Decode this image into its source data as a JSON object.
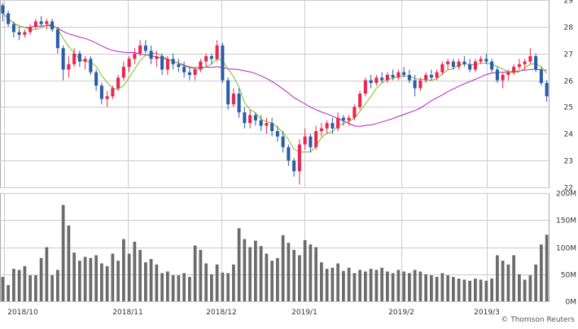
{
  "chart_data": {
    "type": "candlestick",
    "colors": {
      "up": "#e8264e",
      "down": "#2a5caa",
      "ma_short": "#7fbf1f",
      "ma_long": "#b822c8",
      "volume": "#6b6b6b",
      "grid": "#cccccc",
      "frame": "#aaaaaa"
    },
    "price_axis": {
      "ticks": [
        "22",
        "23",
        "24",
        "25",
        "26",
        "27",
        "28",
        "29"
      ],
      "ylim": [
        22,
        29
      ]
    },
    "volume_axis": {
      "ticks": [
        "0M",
        "50M",
        "100M",
        "150M",
        "200M"
      ],
      "ylim": [
        0,
        200
      ]
    },
    "x_labels": [
      "2018/10",
      "2018/11",
      "2018/12",
      "2019/1",
      "2019/2",
      "2019/3"
    ],
    "grid": true,
    "ohlc": [
      [
        28.8,
        28.9,
        28.2,
        28.5
      ],
      [
        28.5,
        28.6,
        28.0,
        28.1
      ],
      [
        28.1,
        28.2,
        27.6,
        27.8
      ],
      [
        27.8,
        28.0,
        27.5,
        27.7
      ],
      [
        27.7,
        27.9,
        27.6,
        27.8
      ],
      [
        27.8,
        28.1,
        27.7,
        28.0
      ],
      [
        28.0,
        28.3,
        27.9,
        28.2
      ],
      [
        28.2,
        28.4,
        28.0,
        28.1
      ],
      [
        28.1,
        28.3,
        27.9,
        28.2
      ],
      [
        28.2,
        28.3,
        27.8,
        27.9
      ],
      [
        27.9,
        28.0,
        27.0,
        27.2
      ],
      [
        27.2,
        27.3,
        26.0,
        26.4
      ],
      [
        26.4,
        26.9,
        26.1,
        26.6
      ],
      [
        26.6,
        27.2,
        26.5,
        27.0
      ],
      [
        27.0,
        27.1,
        26.5,
        26.7
      ],
      [
        26.7,
        26.9,
        26.4,
        26.8
      ],
      [
        26.8,
        26.9,
        26.2,
        26.3
      ],
      [
        26.3,
        26.4,
        25.6,
        25.8
      ],
      [
        25.8,
        25.9,
        25.1,
        25.3
      ],
      [
        25.3,
        25.6,
        25.0,
        25.4
      ],
      [
        25.4,
        25.8,
        25.3,
        25.7
      ],
      [
        25.7,
        26.2,
        25.6,
        26.1
      ],
      [
        26.1,
        26.7,
        26.0,
        26.5
      ],
      [
        26.5,
        26.9,
        26.3,
        26.8
      ],
      [
        26.8,
        27.2,
        26.6,
        27.0
      ],
      [
        27.0,
        27.5,
        26.9,
        27.3
      ],
      [
        27.3,
        27.5,
        27.0,
        27.1
      ],
      [
        27.1,
        27.3,
        26.6,
        26.8
      ],
      [
        26.8,
        27.1,
        26.5,
        26.9
      ],
      [
        26.9,
        27.0,
        26.2,
        26.4
      ],
      [
        26.4,
        26.9,
        26.2,
        26.8
      ],
      [
        26.8,
        27.0,
        26.4,
        26.6
      ],
      [
        26.6,
        26.8,
        26.3,
        26.5
      ],
      [
        26.5,
        26.7,
        26.1,
        26.3
      ],
      [
        26.3,
        26.5,
        26.0,
        26.2
      ],
      [
        26.2,
        26.5,
        26.0,
        26.4
      ],
      [
        26.4,
        26.8,
        26.3,
        26.7
      ],
      [
        26.7,
        27.0,
        26.5,
        26.9
      ],
      [
        26.9,
        27.0,
        26.6,
        26.8
      ],
      [
        26.8,
        27.5,
        26.7,
        27.3
      ],
      [
        27.3,
        27.4,
        25.9,
        26.0
      ],
      [
        26.0,
        26.1,
        24.9,
        25.1
      ],
      [
        25.1,
        25.7,
        25.0,
        25.5
      ],
      [
        25.5,
        25.7,
        24.6,
        24.8
      ],
      [
        24.8,
        25.0,
        24.2,
        24.4
      ],
      [
        24.4,
        24.9,
        24.2,
        24.7
      ],
      [
        24.7,
        24.8,
        24.3,
        24.5
      ],
      [
        24.5,
        24.7,
        24.1,
        24.3
      ],
      [
        24.3,
        24.6,
        24.0,
        24.4
      ],
      [
        24.4,
        24.6,
        23.9,
        24.1
      ],
      [
        24.1,
        24.3,
        23.7,
        23.9
      ],
      [
        23.9,
        24.1,
        23.3,
        23.5
      ],
      [
        23.5,
        23.6,
        22.8,
        23.0
      ],
      [
        23.0,
        23.1,
        22.4,
        22.6
      ],
      [
        22.6,
        23.8,
        22.1,
        23.6
      ],
      [
        23.6,
        24.2,
        23.4,
        23.9
      ],
      [
        23.9,
        24.0,
        23.3,
        23.5
      ],
      [
        23.5,
        24.3,
        23.4,
        24.1
      ],
      [
        24.1,
        24.4,
        23.9,
        24.2
      ],
      [
        24.2,
        24.5,
        24.0,
        24.4
      ],
      [
        24.4,
        24.6,
        24.0,
        24.2
      ],
      [
        24.2,
        24.8,
        24.1,
        24.6
      ],
      [
        24.6,
        24.7,
        24.3,
        24.5
      ],
      [
        24.5,
        24.7,
        24.3,
        24.6
      ],
      [
        24.6,
        25.1,
        24.5,
        25.0
      ],
      [
        25.0,
        25.6,
        24.9,
        25.5
      ],
      [
        25.5,
        26.1,
        25.4,
        26.0
      ],
      [
        26.0,
        26.2,
        25.7,
        25.9
      ],
      [
        25.9,
        26.2,
        25.8,
        26.1
      ],
      [
        26.1,
        26.3,
        25.9,
        26.0
      ],
      [
        26.0,
        26.3,
        25.9,
        26.2
      ],
      [
        26.2,
        26.4,
        26.0,
        26.1
      ],
      [
        26.1,
        26.4,
        26.0,
        26.3
      ],
      [
        26.3,
        26.5,
        26.1,
        26.2
      ],
      [
        26.2,
        26.4,
        25.9,
        26.0
      ],
      [
        26.0,
        26.2,
        25.4,
        25.7
      ],
      [
        25.7,
        26.1,
        25.6,
        26.0
      ],
      [
        26.0,
        26.3,
        25.9,
        26.2
      ],
      [
        26.2,
        26.4,
        26.0,
        26.1
      ],
      [
        26.1,
        26.4,
        26.0,
        26.3
      ],
      [
        26.3,
        26.7,
        26.2,
        26.6
      ],
      [
        26.6,
        26.8,
        26.4,
        26.7
      ],
      [
        26.7,
        26.8,
        26.4,
        26.5
      ],
      [
        26.5,
        26.8,
        26.4,
        26.7
      ],
      [
        26.7,
        26.9,
        26.5,
        26.6
      ],
      [
        26.6,
        26.8,
        26.3,
        26.4
      ],
      [
        26.4,
        26.8,
        26.3,
        26.7
      ],
      [
        26.7,
        26.9,
        26.6,
        26.8
      ],
      [
        26.8,
        27.0,
        26.6,
        26.7
      ],
      [
        26.7,
        26.8,
        26.3,
        26.4
      ],
      [
        26.4,
        26.5,
        25.9,
        26.0
      ],
      [
        26.0,
        26.3,
        25.7,
        26.2
      ],
      [
        26.2,
        26.4,
        26.0,
        26.3
      ],
      [
        26.3,
        26.6,
        26.2,
        26.5
      ],
      [
        26.5,
        26.8,
        26.4,
        26.6
      ],
      [
        26.6,
        26.8,
        26.4,
        26.7
      ],
      [
        26.7,
        27.2,
        26.6,
        26.9
      ],
      [
        26.9,
        27.0,
        26.3,
        26.4
      ],
      [
        26.4,
        26.5,
        25.8,
        25.9
      ],
      [
        25.9,
        26.0,
        25.2,
        25.4
      ]
    ],
    "volumes": [
      45,
      30,
      60,
      58,
      65,
      48,
      48,
      80,
      100,
      48,
      58,
      178,
      140,
      90,
      75,
      82,
      80,
      85,
      70,
      65,
      88,
      75,
      115,
      88,
      110,
      95,
      72,
      78,
      68,
      52,
      55,
      48,
      48,
      52,
      45,
      103,
      95,
      70,
      50,
      68,
      53,
      52,
      68,
      135,
      115,
      100,
      112,
      102,
      88,
      75,
      80,
      122,
      108,
      95,
      85,
      113,
      105,
      100,
      72,
      60,
      62,
      70,
      56,
      62,
      52,
      58,
      55,
      60,
      58,
      62,
      55,
      52,
      58,
      55,
      52,
      58,
      55,
      50,
      48,
      45,
      52,
      48,
      45,
      42,
      40,
      38,
      42,
      40,
      38,
      42,
      85,
      75,
      68,
      85,
      50,
      40,
      48,
      68,
      105,
      123
    ]
  }
}
